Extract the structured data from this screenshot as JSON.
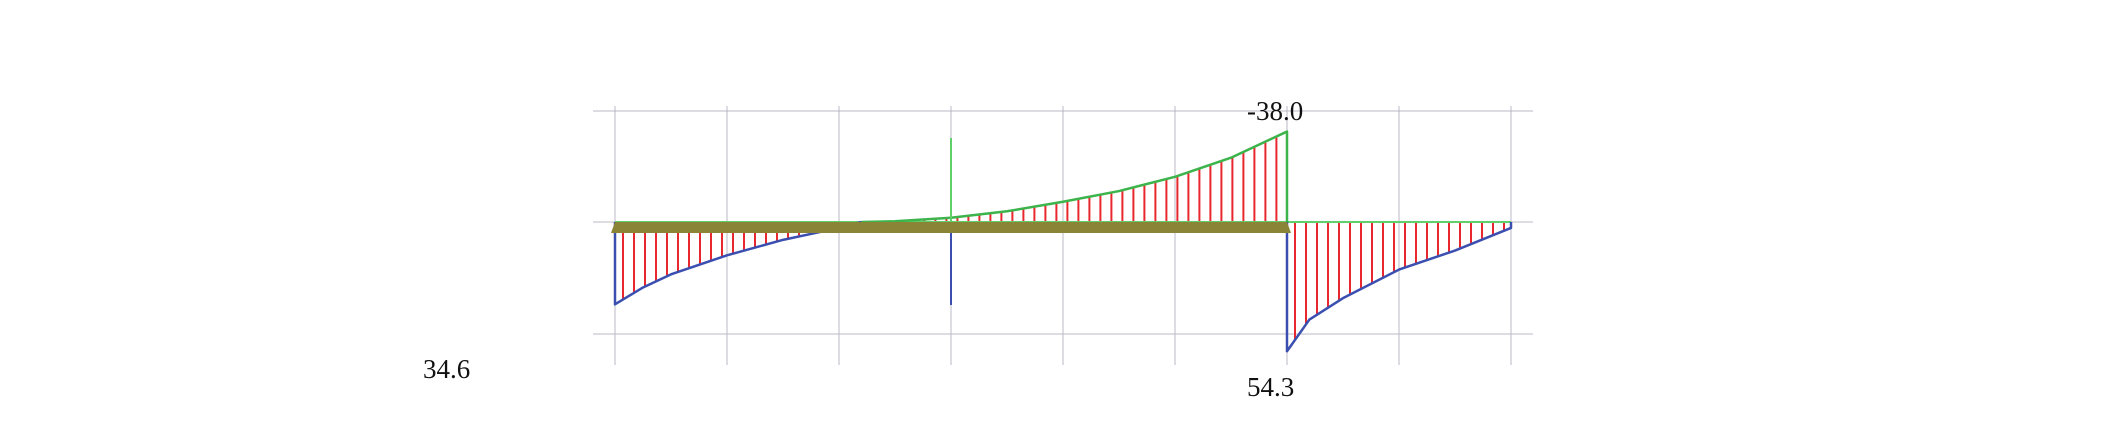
{
  "diagram": {
    "labels": {
      "left_end": "34.6",
      "peak_negative": "-38.0",
      "support_right": "54.3"
    },
    "colors": {
      "grid": "#b9b9c6",
      "positive_outline": "#3b4fb0",
      "negative_outline": "#3cb44b",
      "hatch": "#e8282e",
      "member": "#8a8436",
      "axis": "#5fd06a"
    },
    "segments": [
      {
        "side": "positive",
        "points": [
          [
            0,
            34.6
          ],
          [
            0.25,
            27.5
          ],
          [
            0.5,
            22
          ],
          [
            1,
            14
          ],
          [
            1.5,
            7.5
          ],
          [
            2,
            2.5
          ],
          [
            2.2,
            0
          ]
        ]
      },
      {
        "side": "negative",
        "points": [
          [
            2.2,
            0
          ],
          [
            2.5,
            -0.3
          ],
          [
            3,
            -1.8
          ],
          [
            3.5,
            -4.5
          ],
          [
            4,
            -8.5
          ],
          [
            4.5,
            -13
          ],
          [
            5,
            -19
          ],
          [
            5.5,
            -27
          ],
          [
            6,
            -38.0
          ]
        ]
      },
      {
        "side": "positive",
        "points": [
          [
            6,
            54.3
          ],
          [
            6.2,
            41
          ],
          [
            6.5,
            32
          ],
          [
            7,
            20
          ],
          [
            7.5,
            12
          ],
          [
            8,
            2.5
          ]
        ]
      }
    ]
  }
}
